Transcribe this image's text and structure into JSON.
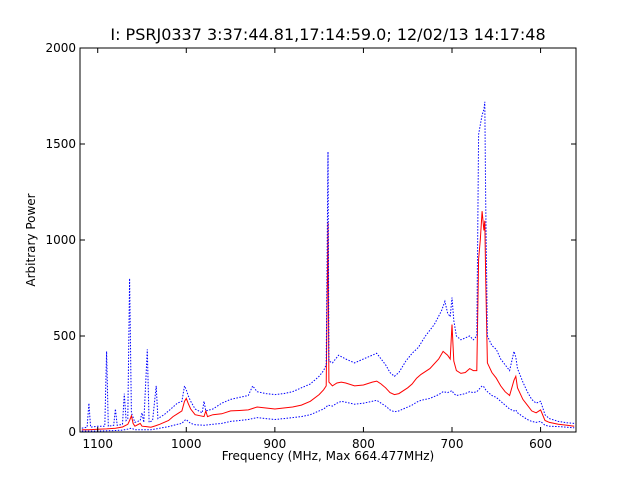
{
  "chart_data": {
    "type": "line",
    "title": "I: PSRJ0337  3:37:44.81,17:14:59.0;  12/02/13 14:17:48",
    "xlabel": "Frequency (MHz,  Max 664.477MHz)",
    "ylabel": "Arbitrary Power",
    "xlim": [
      1120,
      560
    ],
    "ylim": [
      0,
      2000
    ],
    "x_ticks": [
      1100,
      1000,
      900,
      800,
      700,
      600
    ],
    "y_ticks": [
      0,
      500,
      1000,
      1500,
      2000
    ],
    "grid": false,
    "series": [
      {
        "style": "solid",
        "color": "#ff0000",
        "points": [
          [
            1118,
            12
          ],
          [
            1110,
            12
          ],
          [
            1100,
            14
          ],
          [
            1090,
            16
          ],
          [
            1080,
            20
          ],
          [
            1072,
            26
          ],
          [
            1066,
            40
          ],
          [
            1064,
            60
          ],
          [
            1062,
            85
          ],
          [
            1060,
            45
          ],
          [
            1058,
            30
          ],
          [
            1052,
            45
          ],
          [
            1050,
            30
          ],
          [
            1045,
            28
          ],
          [
            1040,
            25
          ],
          [
            1035,
            32
          ],
          [
            1030,
            40
          ],
          [
            1020,
            60
          ],
          [
            1015,
            80
          ],
          [
            1010,
            95
          ],
          [
            1005,
            110
          ],
          [
            1002,
            160
          ],
          [
            1000,
            175
          ],
          [
            998,
            150
          ],
          [
            995,
            120
          ],
          [
            990,
            90
          ],
          [
            980,
            80
          ],
          [
            978,
            110
          ],
          [
            976,
            80
          ],
          [
            970,
            90
          ],
          [
            960,
            95
          ],
          [
            950,
            110
          ],
          [
            940,
            112
          ],
          [
            930,
            115
          ],
          [
            920,
            130
          ],
          [
            910,
            125
          ],
          [
            900,
            120
          ],
          [
            890,
            125
          ],
          [
            880,
            130
          ],
          [
            870,
            140
          ],
          [
            860,
            160
          ],
          [
            850,
            195
          ],
          [
            845,
            220
          ],
          [
            842,
            240
          ],
          [
            840,
            1090
          ],
          [
            839,
            260
          ],
          [
            835,
            240
          ],
          [
            830,
            255
          ],
          [
            825,
            260
          ],
          [
            820,
            255
          ],
          [
            810,
            240
          ],
          [
            800,
            245
          ],
          [
            790,
            260
          ],
          [
            785,
            265
          ],
          [
            780,
            250
          ],
          [
            775,
            230
          ],
          [
            770,
            205
          ],
          [
            765,
            195
          ],
          [
            760,
            200
          ],
          [
            750,
            230
          ],
          [
            745,
            250
          ],
          [
            740,
            280
          ],
          [
            735,
            300
          ],
          [
            725,
            330
          ],
          [
            715,
            380
          ],
          [
            710,
            420
          ],
          [
            705,
            400
          ],
          [
            702,
            380
          ],
          [
            700,
            560
          ],
          [
            698,
            370
          ],
          [
            695,
            320
          ],
          [
            690,
            305
          ],
          [
            685,
            310
          ],
          [
            680,
            330
          ],
          [
            676,
            320
          ],
          [
            672,
            320
          ],
          [
            670,
            900
          ],
          [
            668,
            1000
          ],
          [
            666,
            1150
          ],
          [
            664,
            1050
          ],
          [
            663,
            1100
          ],
          [
            662,
            800
          ],
          [
            660,
            360
          ],
          [
            655,
            310
          ],
          [
            650,
            280
          ],
          [
            645,
            240
          ],
          [
            640,
            210
          ],
          [
            635,
            190
          ],
          [
            630,
            270
          ],
          [
            628,
            290
          ],
          [
            626,
            230
          ],
          [
            620,
            170
          ],
          [
            615,
            140
          ],
          [
            610,
            110
          ],
          [
            605,
            100
          ],
          [
            600,
            115
          ],
          [
            595,
            60
          ],
          [
            590,
            50
          ],
          [
            580,
            40
          ],
          [
            570,
            35
          ],
          [
            562,
            30
          ]
        ]
      },
      {
        "style": "dotted",
        "color": "#0000ff",
        "points": [
          [
            1118,
            20
          ],
          [
            1112,
            25
          ],
          [
            1110,
            150
          ],
          [
            1108,
            25
          ],
          [
            1100,
            30
          ],
          [
            1092,
            30
          ],
          [
            1090,
            420
          ],
          [
            1088,
            30
          ],
          [
            1082,
            35
          ],
          [
            1080,
            120
          ],
          [
            1078,
            35
          ],
          [
            1072,
            40
          ],
          [
            1070,
            200
          ],
          [
            1068,
            60
          ],
          [
            1066,
            70
          ],
          [
            1064,
            800
          ],
          [
            1062,
            100
          ],
          [
            1058,
            50
          ],
          [
            1052,
            60
          ],
          [
            1050,
            100
          ],
          [
            1048,
            50
          ],
          [
            1044,
            430
          ],
          [
            1042,
            50
          ],
          [
            1038,
            60
          ],
          [
            1034,
            240
          ],
          [
            1032,
            70
          ],
          [
            1025,
            90
          ],
          [
            1020,
            110
          ],
          [
            1010,
            150
          ],
          [
            1005,
            160
          ],
          [
            1002,
            240
          ],
          [
            1000,
            220
          ],
          [
            998,
            190
          ],
          [
            995,
            160
          ],
          [
            990,
            120
          ],
          [
            982,
            100
          ],
          [
            980,
            160
          ],
          [
            978,
            110
          ],
          [
            970,
            120
          ],
          [
            960,
            150
          ],
          [
            950,
            170
          ],
          [
            940,
            180
          ],
          [
            930,
            190
          ],
          [
            925,
            240
          ],
          [
            920,
            210
          ],
          [
            910,
            200
          ],
          [
            900,
            195
          ],
          [
            890,
            200
          ],
          [
            880,
            210
          ],
          [
            870,
            230
          ],
          [
            860,
            250
          ],
          [
            850,
            290
          ],
          [
            845,
            320
          ],
          [
            842,
            350
          ],
          [
            840,
            1460
          ],
          [
            839,
            370
          ],
          [
            835,
            360
          ],
          [
            828,
            400
          ],
          [
            820,
            380
          ],
          [
            810,
            360
          ],
          [
            800,
            380
          ],
          [
            790,
            400
          ],
          [
            785,
            410
          ],
          [
            780,
            380
          ],
          [
            775,
            350
          ],
          [
            770,
            310
          ],
          [
            765,
            290
          ],
          [
            760,
            310
          ],
          [
            752,
            370
          ],
          [
            745,
            410
          ],
          [
            738,
            440
          ],
          [
            730,
            500
          ],
          [
            720,
            560
          ],
          [
            712,
            630
          ],
          [
            708,
            680
          ],
          [
            705,
            620
          ],
          [
            702,
            600
          ],
          [
            700,
            700
          ],
          [
            698,
            580
          ],
          [
            695,
            500
          ],
          [
            690,
            480
          ],
          [
            685,
            490
          ],
          [
            680,
            500
          ],
          [
            676,
            480
          ],
          [
            672,
            500
          ],
          [
            670,
            1550
          ],
          [
            668,
            1600
          ],
          [
            666,
            1650
          ],
          [
            664,
            1680
          ],
          [
            663,
            1720
          ],
          [
            662,
            1200
          ],
          [
            660,
            500
          ],
          [
            655,
            450
          ],
          [
            650,
            430
          ],
          [
            645,
            380
          ],
          [
            640,
            350
          ],
          [
            635,
            320
          ],
          [
            630,
            420
          ],
          [
            628,
            390
          ],
          [
            626,
            330
          ],
          [
            620,
            260
          ],
          [
            615,
            210
          ],
          [
            610,
            170
          ],
          [
            605,
            150
          ],
          [
            600,
            160
          ],
          [
            595,
            90
          ],
          [
            590,
            70
          ],
          [
            580,
            55
          ],
          [
            570,
            48
          ],
          [
            562,
            45
          ]
        ]
      },
      {
        "style": "dotted",
        "color": "#0000ff",
        "points": [
          [
            1118,
            5
          ],
          [
            1110,
            5
          ],
          [
            1100,
            5
          ],
          [
            1090,
            6
          ],
          [
            1080,
            8
          ],
          [
            1072,
            10
          ],
          [
            1066,
            15
          ],
          [
            1062,
            20
          ],
          [
            1058,
            12
          ],
          [
            1050,
            12
          ],
          [
            1045,
            12
          ],
          [
            1040,
            12
          ],
          [
            1035,
            15
          ],
          [
            1030,
            20
          ],
          [
            1020,
            28
          ],
          [
            1010,
            40
          ],
          [
            1005,
            45
          ],
          [
            1002,
            60
          ],
          [
            1000,
            65
          ],
          [
            998,
            55
          ],
          [
            995,
            45
          ],
          [
            990,
            38
          ],
          [
            980,
            35
          ],
          [
            970,
            40
          ],
          [
            960,
            45
          ],
          [
            950,
            55
          ],
          [
            940,
            60
          ],
          [
            930,
            65
          ],
          [
            920,
            75
          ],
          [
            910,
            70
          ],
          [
            900,
            65
          ],
          [
            890,
            70
          ],
          [
            880,
            75
          ],
          [
            870,
            80
          ],
          [
            860,
            90
          ],
          [
            850,
            110
          ],
          [
            845,
            120
          ],
          [
            842,
            130
          ],
          [
            840,
            140
          ],
          [
            835,
            135
          ],
          [
            830,
            150
          ],
          [
            825,
            160
          ],
          [
            820,
            155
          ],
          [
            810,
            145
          ],
          [
            800,
            150
          ],
          [
            790,
            160
          ],
          [
            785,
            165
          ],
          [
            780,
            150
          ],
          [
            775,
            135
          ],
          [
            770,
            115
          ],
          [
            765,
            105
          ],
          [
            760,
            110
          ],
          [
            750,
            130
          ],
          [
            745,
            140
          ],
          [
            740,
            155
          ],
          [
            735,
            165
          ],
          [
            725,
            175
          ],
          [
            715,
            195
          ],
          [
            710,
            210
          ],
          [
            705,
            205
          ],
          [
            700,
            215
          ],
          [
            698,
            200
          ],
          [
            695,
            190
          ],
          [
            690,
            195
          ],
          [
            685,
            200
          ],
          [
            680,
            210
          ],
          [
            676,
            205
          ],
          [
            672,
            210
          ],
          [
            670,
            220
          ],
          [
            668,
            230
          ],
          [
            666,
            240
          ],
          [
            664,
            235
          ],
          [
            662,
            220
          ],
          [
            660,
            210
          ],
          [
            655,
            190
          ],
          [
            650,
            180
          ],
          [
            645,
            160
          ],
          [
            640,
            140
          ],
          [
            635,
            120
          ],
          [
            630,
            110
          ],
          [
            628,
            115
          ],
          [
            626,
            100
          ],
          [
            620,
            80
          ],
          [
            615,
            65
          ],
          [
            610,
            55
          ],
          [
            605,
            50
          ],
          [
            600,
            55
          ],
          [
            595,
            35
          ],
          [
            590,
            30
          ],
          [
            580,
            28
          ],
          [
            570,
            25
          ],
          [
            562,
            22
          ]
        ]
      }
    ]
  }
}
